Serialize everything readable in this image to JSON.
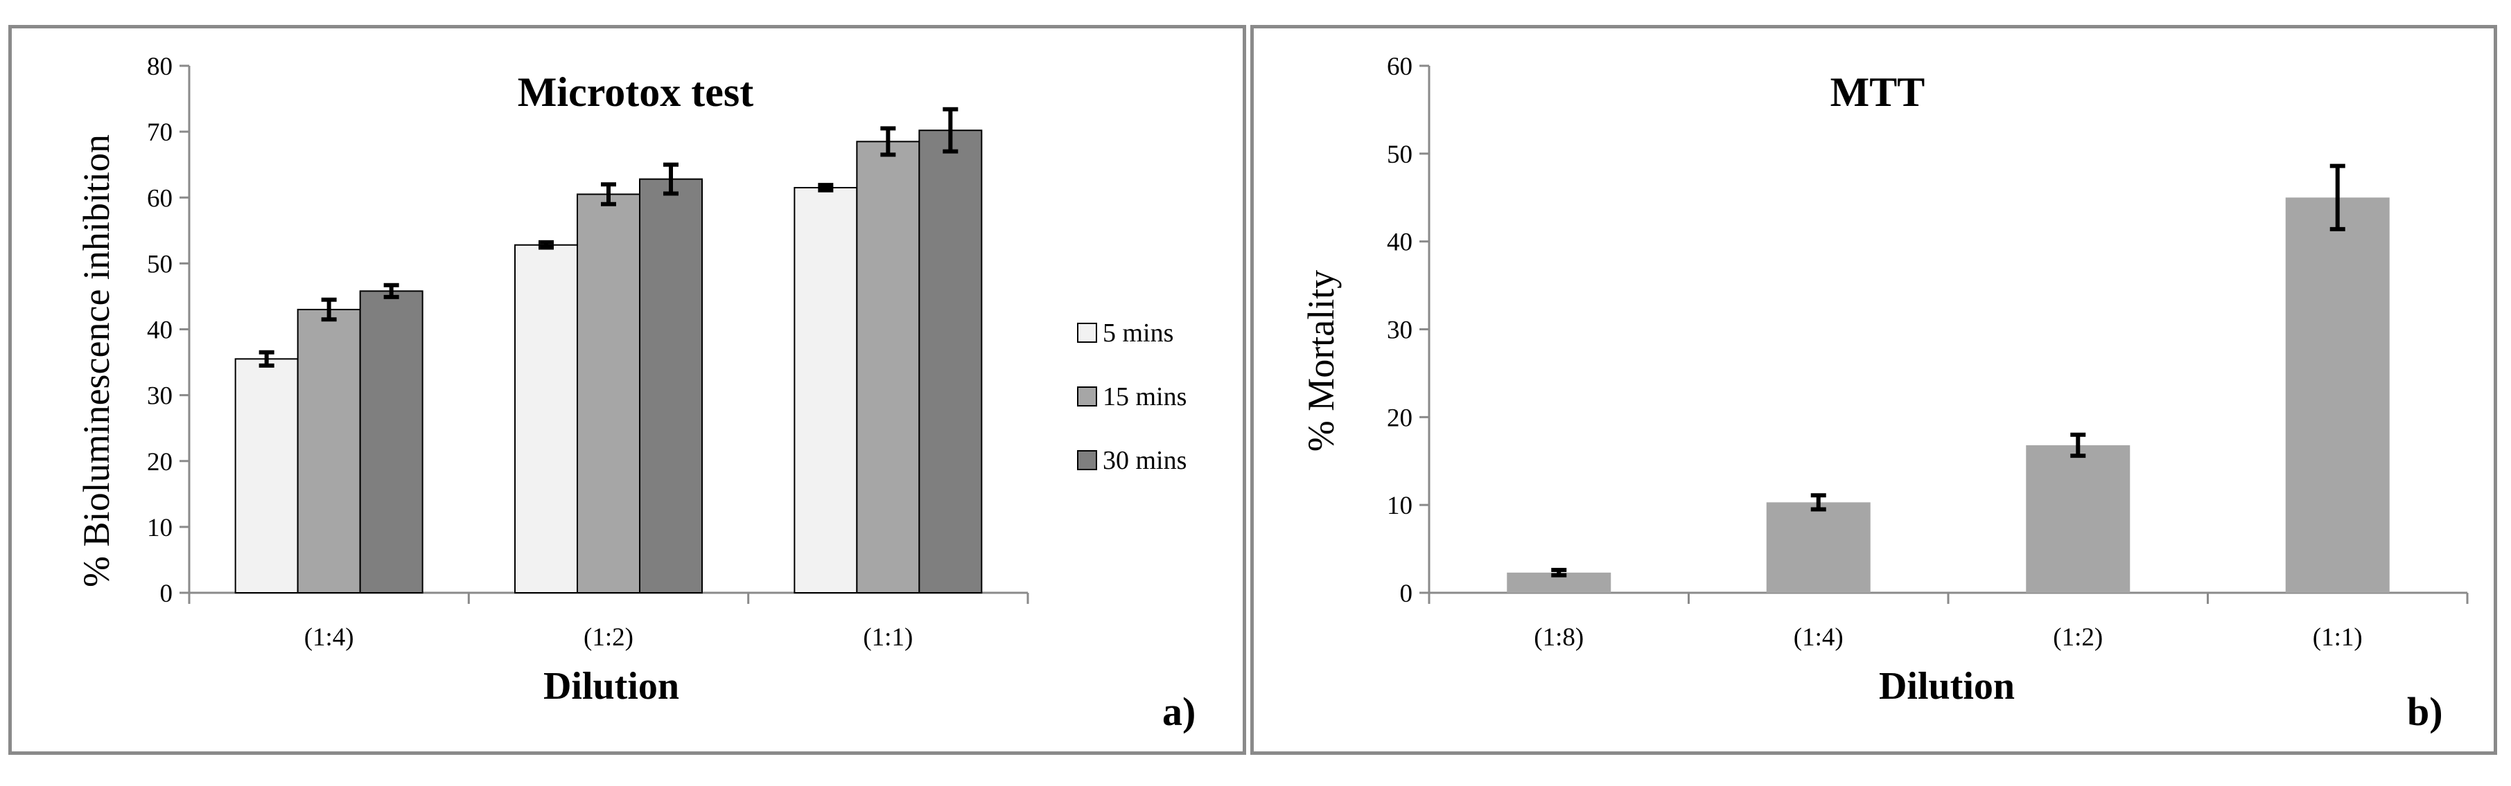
{
  "chart_data": [
    {
      "type": "bar",
      "title": "Microtox test",
      "xlabel": "Dilution",
      "ylabel": "% Bioluminescence  inhibition",
      "ylim": [
        0,
        80
      ],
      "yticks": [
        0,
        10,
        20,
        30,
        40,
        50,
        60,
        70,
        80
      ],
      "categories": [
        "(1:4)",
        "(1:2)",
        "(1:1)"
      ],
      "series": [
        {
          "name": "5 mins",
          "values": [
            35.5,
            52.8,
            61.5
          ],
          "errors": [
            1.0,
            0.4,
            0.4
          ],
          "color": "#f2f2f2"
        },
        {
          "name": "15 mins",
          "values": [
            43.0,
            60.5,
            68.5
          ],
          "errors": [
            1.5,
            1.5,
            2.0
          ],
          "color": "#a6a6a6"
        },
        {
          "name": "30 mins",
          "values": [
            45.8,
            62.8,
            70.2
          ],
          "errors": [
            0.9,
            2.2,
            3.2
          ],
          "color": "#7f7f7f"
        }
      ],
      "legend_position": "right",
      "panel_label": "a)"
    },
    {
      "type": "bar",
      "title": "MTT",
      "xlabel": "Dilution",
      "ylabel": "% Mortality",
      "ylim": [
        0,
        60
      ],
      "yticks": [
        0,
        10,
        20,
        30,
        40,
        50,
        60
      ],
      "categories": [
        "(1:8)",
        "(1:4)",
        "(1:2)",
        "(1:1)"
      ],
      "series": [
        {
          "name": "Mortality",
          "values": [
            2.3,
            10.3,
            16.8,
            45.0
          ],
          "errors": [
            0.3,
            0.8,
            1.2,
            3.6
          ],
          "color": "#a6a6a6"
        }
      ],
      "panel_label": "b)"
    }
  ]
}
